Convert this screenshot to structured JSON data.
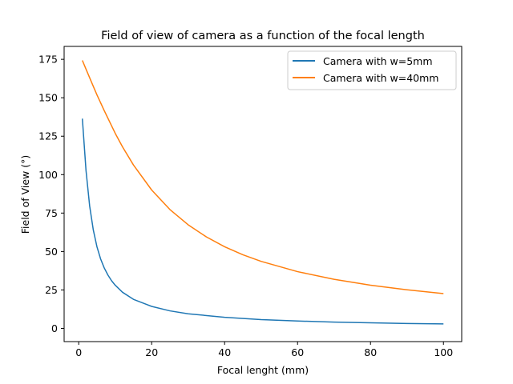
{
  "chart_data": {
    "type": "line",
    "title": "Field of view of camera as a function of the focal length",
    "xlabel": "Focal lenght (mm)",
    "ylabel": "Field of View (°)",
    "xlim": [
      -4,
      105
    ],
    "ylim": [
      -8.6,
      183.4
    ],
    "xticks": [
      0,
      20,
      40,
      60,
      80,
      100
    ],
    "yticks": [
      0,
      25,
      50,
      75,
      100,
      125,
      150,
      175
    ],
    "grid": false,
    "legend_position": "top-right",
    "series": [
      {
        "name": "Camera with w=5mm",
        "color": "#1f77b4",
        "x": [
          1,
          2,
          3,
          4,
          5,
          6,
          7,
          8,
          9,
          10,
          12,
          15,
          20,
          25,
          30,
          40,
          50,
          60,
          70,
          80,
          90,
          100
        ],
        "y": [
          136.4,
          102.7,
          79.6,
          64.0,
          53.1,
          45.2,
          39.3,
          34.7,
          31.0,
          28.1,
          23.5,
          18.9,
          14.3,
          11.4,
          9.5,
          7.2,
          5.7,
          4.8,
          4.1,
          3.6,
          3.2,
          2.9
        ]
      },
      {
        "name": "Camera with w=40mm",
        "color": "#ff7f0e",
        "x": [
          1,
          2,
          3,
          4,
          5,
          7,
          10,
          12,
          15,
          20,
          25,
          30,
          35,
          40,
          45,
          50,
          60,
          70,
          80,
          90,
          100
        ],
        "y": [
          174.3,
          168.6,
          163.0,
          157.4,
          151.9,
          141.6,
          126.9,
          118.1,
          106.3,
          90.0,
          77.3,
          67.4,
          59.5,
          53.1,
          47.9,
          43.6,
          36.9,
          31.9,
          28.1,
          25.1,
          22.6
        ]
      }
    ]
  }
}
